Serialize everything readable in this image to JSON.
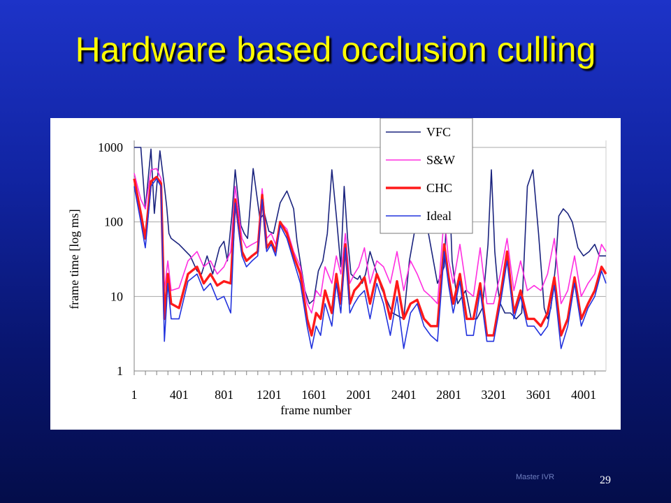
{
  "slide": {
    "title": "Hardware based occlusion culling",
    "footer": "Master IVR",
    "page_number": "29"
  },
  "chart_data": {
    "type": "line",
    "ylabel": "frame time [log ms]",
    "xlabel": "frame number",
    "yscale": "log",
    "ylim": [
      1,
      1000
    ],
    "xlim": [
      1,
      4200
    ],
    "yticks": [
      "1",
      "10",
      "100",
      "1000"
    ],
    "xticks": [
      "1",
      "401",
      "801",
      "1201",
      "1601",
      "2001",
      "2401",
      "2801",
      "3201",
      "3601",
      "4001"
    ],
    "grid": true,
    "legend_position": "top-right",
    "series": [
      {
        "name": "VFC",
        "color": "#1a237e",
        "x": [
          1,
          60,
          100,
          150,
          180,
          230,
          270,
          290,
          310,
          330,
          400,
          500,
          560,
          600,
          650,
          700,
          760,
          800,
          830,
          870,
          900,
          950,
          980,
          1010,
          1060,
          1120,
          1160,
          1200,
          1240,
          1300,
          1360,
          1420,
          1450,
          1520,
          1560,
          1600,
          1640,
          1680,
          1720,
          1760,
          1800,
          1840,
          1870,
          1900,
          1930,
          1960,
          1990,
          2010,
          2030,
          2060,
          2100,
          2200,
          2300,
          2400,
          2450,
          2500,
          2560,
          2620,
          2700,
          2760,
          2800,
          2830,
          2880,
          2950,
          3000,
          3050,
          3100,
          3150,
          3180,
          3210,
          3240,
          3260,
          3300,
          3350,
          3400,
          3450,
          3500,
          3550,
          3600,
          3650,
          3680,
          3710,
          3750,
          3780,
          3820,
          3860,
          3900,
          3950,
          4000,
          4050,
          4100,
          4140,
          4200
        ],
        "values": [
          1000,
          1000,
          150,
          950,
          130,
          900,
          300,
          160,
          70,
          60,
          50,
          35,
          22,
          20,
          35,
          20,
          45,
          55,
          30,
          120,
          500,
          90,
          70,
          60,
          520,
          110,
          130,
          75,
          70,
          180,
          260,
          150,
          55,
          12,
          8,
          9,
          22,
          30,
          70,
          500,
          120,
          25,
          300,
          60,
          20,
          18,
          17,
          19,
          15,
          20,
          40,
          13,
          6,
          5,
          30,
          80,
          120,
          70,
          15,
          25,
          500,
          30,
          8,
          12,
          5,
          5,
          7,
          50,
          500,
          40,
          12,
          8,
          6,
          6,
          5,
          6,
          300,
          500,
          70,
          7,
          5,
          7,
          25,
          120,
          150,
          130,
          100,
          45,
          35,
          40,
          50,
          35,
          35
        ]
      },
      {
        "name": "S&W",
        "color": "#ff2ee0",
        "x": [
          1,
          60,
          100,
          150,
          200,
          240,
          270,
          300,
          330,
          400,
          480,
          560,
          620,
          680,
          740,
          800,
          860,
          900,
          960,
          1000,
          1050,
          1100,
          1140,
          1180,
          1220,
          1260,
          1300,
          1360,
          1420,
          1480,
          1540,
          1580,
          1620,
          1660,
          1700,
          1760,
          1800,
          1840,
          1880,
          1920,
          1960,
          2000,
          2050,
          2100,
          2160,
          2220,
          2280,
          2340,
          2400,
          2460,
          2520,
          2580,
          2640,
          2700,
          2760,
          2800,
          2840,
          2900,
          2960,
          3020,
          3080,
          3140,
          3200,
          3260,
          3320,
          3380,
          3440,
          3500,
          3560,
          3620,
          3680,
          3740,
          3800,
          3860,
          3920,
          3980,
          4040,
          4100,
          4160,
          4200
        ],
        "values": [
          450,
          200,
          150,
          500,
          520,
          380,
          12,
          30,
          12,
          13,
          30,
          40,
          25,
          30,
          20,
          25,
          40,
          300,
          60,
          45,
          50,
          55,
          280,
          60,
          70,
          50,
          100,
          80,
          40,
          25,
          8,
          6,
          12,
          10,
          25,
          15,
          35,
          20,
          70,
          15,
          20,
          25,
          45,
          15,
          30,
          25,
          15,
          40,
          12,
          30,
          20,
          12,
          10,
          8,
          120,
          30,
          15,
          50,
          12,
          10,
          45,
          8,
          8,
          20,
          60,
          12,
          30,
          12,
          14,
          12,
          20,
          60,
          8,
          12,
          35,
          10,
          15,
          20,
          50,
          40
        ]
      },
      {
        "name": "CHC",
        "color": "#ff1a1a",
        "x": [
          1,
          60,
          100,
          150,
          200,
          240,
          270,
          300,
          330,
          400,
          480,
          560,
          620,
          680,
          740,
          800,
          860,
          900,
          960,
          1000,
          1050,
          1100,
          1140,
          1180,
          1220,
          1260,
          1300,
          1360,
          1420,
          1480,
          1540,
          1580,
          1620,
          1660,
          1700,
          1760,
          1800,
          1840,
          1880,
          1920,
          1960,
          2000,
          2050,
          2100,
          2160,
          2220,
          2280,
          2340,
          2400,
          2460,
          2520,
          2580,
          2640,
          2700,
          2760,
          2800,
          2840,
          2900,
          2960,
          3020,
          3080,
          3140,
          3200,
          3260,
          3320,
          3380,
          3440,
          3500,
          3560,
          3620,
          3680,
          3740,
          3800,
          3860,
          3920,
          3980,
          4040,
          4100,
          4160,
          4200
        ],
        "values": [
          380,
          130,
          60,
          350,
          400,
          330,
          5,
          20,
          8,
          7,
          20,
          25,
          15,
          20,
          14,
          16,
          15,
          200,
          40,
          30,
          35,
          40,
          230,
          45,
          55,
          40,
          100,
          70,
          35,
          20,
          5,
          3,
          6,
          5,
          12,
          6,
          20,
          8,
          50,
          8,
          12,
          14,
          18,
          8,
          20,
          12,
          5,
          16,
          5,
          8,
          9,
          5,
          4,
          4,
          50,
          18,
          8,
          20,
          5,
          5,
          15,
          3,
          3,
          10,
          40,
          6,
          12,
          5,
          5,
          4,
          6,
          18,
          3,
          5,
          18,
          5,
          8,
          12,
          25,
          20
        ]
      },
      {
        "name": "Ideal",
        "color": "#2233dd",
        "x": [
          1,
          60,
          100,
          150,
          200,
          240,
          270,
          300,
          330,
          400,
          480,
          560,
          620,
          680,
          740,
          800,
          860,
          900,
          960,
          1000,
          1050,
          1100,
          1140,
          1180,
          1220,
          1260,
          1300,
          1360,
          1420,
          1480,
          1540,
          1580,
          1620,
          1660,
          1700,
          1760,
          1800,
          1840,
          1880,
          1920,
          1960,
          2000,
          2050,
          2100,
          2160,
          2220,
          2280,
          2340,
          2400,
          2460,
          2520,
          2580,
          2640,
          2700,
          2760,
          2800,
          2840,
          2900,
          2960,
          3020,
          3080,
          3140,
          3200,
          3260,
          3320,
          3380,
          3440,
          3500,
          3560,
          3620,
          3680,
          3740,
          3800,
          3860,
          3920,
          3980,
          4040,
          4100,
          4160,
          4200
        ],
        "values": [
          300,
          100,
          45,
          300,
          380,
          300,
          2.5,
          15,
          5,
          5,
          16,
          20,
          12,
          15,
          9,
          10,
          6,
          180,
          35,
          25,
          30,
          35,
          200,
          40,
          50,
          35,
          90,
          60,
          30,
          15,
          4,
          2,
          4,
          3,
          8,
          4,
          15,
          6,
          45,
          6,
          8,
          10,
          12,
          5,
          15,
          8,
          3,
          10,
          2,
          6,
          8,
          4,
          3,
          2.5,
          40,
          14,
          6,
          16,
          3,
          3,
          12,
          2.5,
          2.5,
          8,
          30,
          5,
          10,
          4,
          4,
          3,
          4,
          14,
          2,
          4,
          15,
          4,
          7,
          10,
          22,
          15
        ]
      }
    ]
  }
}
